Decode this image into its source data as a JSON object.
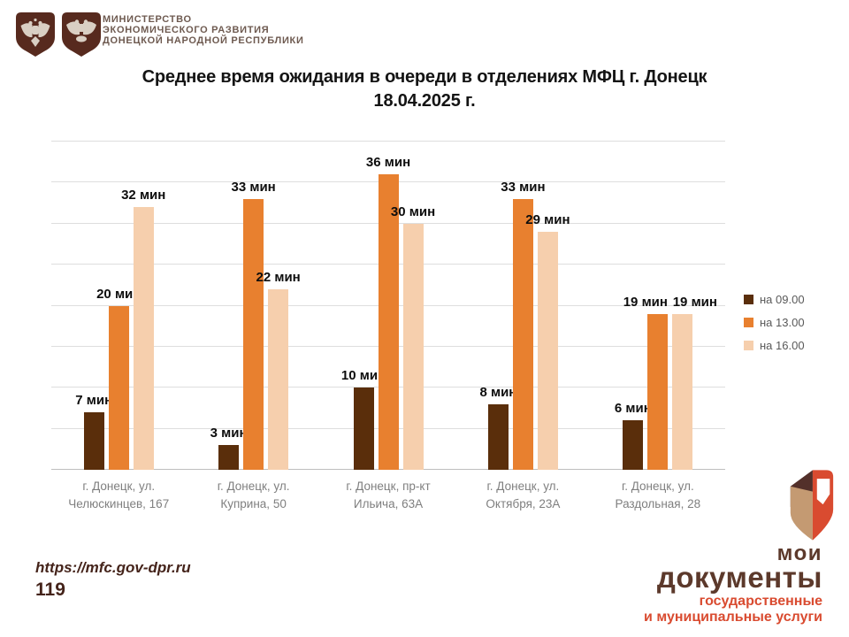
{
  "header": {
    "ministry_lines": [
      "МИНИСТЕРСТВО",
      "ЭКОНОМИЧЕСКОГО РАЗВИТИЯ",
      "ДОНЕЦКОЙ НАРОДНОЙ РЕСПУБЛИКИ"
    ]
  },
  "title": {
    "line1": "Среднее время ожидания в очереди в отделениях МФЦ г. Донецк",
    "line2": "18.04.2025 г."
  },
  "chart_data": {
    "type": "bar",
    "title": "Среднее время ожидания в очереди в отделениях МФЦ г. Донецк 18.04.2025 г.",
    "unit": "мин",
    "categories": [
      "г. Донецк, ул. Челюскинцев, 167",
      "г. Донецк, ул. Куприна, 50",
      "г. Донецк, пр-кт Ильича, 63А",
      "г. Донецк, ул. Октября, 23А",
      "г. Донецк, ул. Раздольная, 28"
    ],
    "category_lines": [
      [
        "г. Донецк, ул.",
        "Челюскинцев, 167"
      ],
      [
        "г. Донецк, ул.",
        "Куприна, 50"
      ],
      [
        "г. Донецк, пр-кт",
        "Ильича, 63А"
      ],
      [
        "г. Донецк, ул.",
        "Октября, 23А"
      ],
      [
        "г. Донецк, ул.",
        "Раздольная, 28"
      ]
    ],
    "series": [
      {
        "name": "на 09.00",
        "color": "#5a2e0b",
        "values": [
          7,
          3,
          10,
          8,
          6
        ]
      },
      {
        "name": "на 13.00",
        "color": "#e8802f",
        "values": [
          20,
          33,
          36,
          33,
          19
        ]
      },
      {
        "name": "на 16.00",
        "color": "#f6cfad",
        "values": [
          32,
          22,
          30,
          29,
          19
        ]
      }
    ],
    "label_dx": [
      [
        0,
        0,
        0,
        0,
        0
      ],
      [
        0,
        0,
        0,
        0,
        -14
      ],
      [
        0,
        0,
        0,
        0,
        14
      ]
    ],
    "ylim": [
      0,
      40
    ],
    "grid_step": 5,
    "grid": true,
    "legend_position": "right",
    "xlabel": "",
    "ylabel": ""
  },
  "footer": {
    "url": "https://mfc.gov-dpr.ru",
    "hotline": "119"
  },
  "brand": {
    "name_top": "мои",
    "name_bottom": "документы",
    "subtitle_line1": "государственные",
    "subtitle_line2": "и муниципальные услуги",
    "colors": {
      "brown": "#5c392b",
      "red": "#d94b30",
      "tan": "#c49a72",
      "fold": "#53302a"
    }
  }
}
